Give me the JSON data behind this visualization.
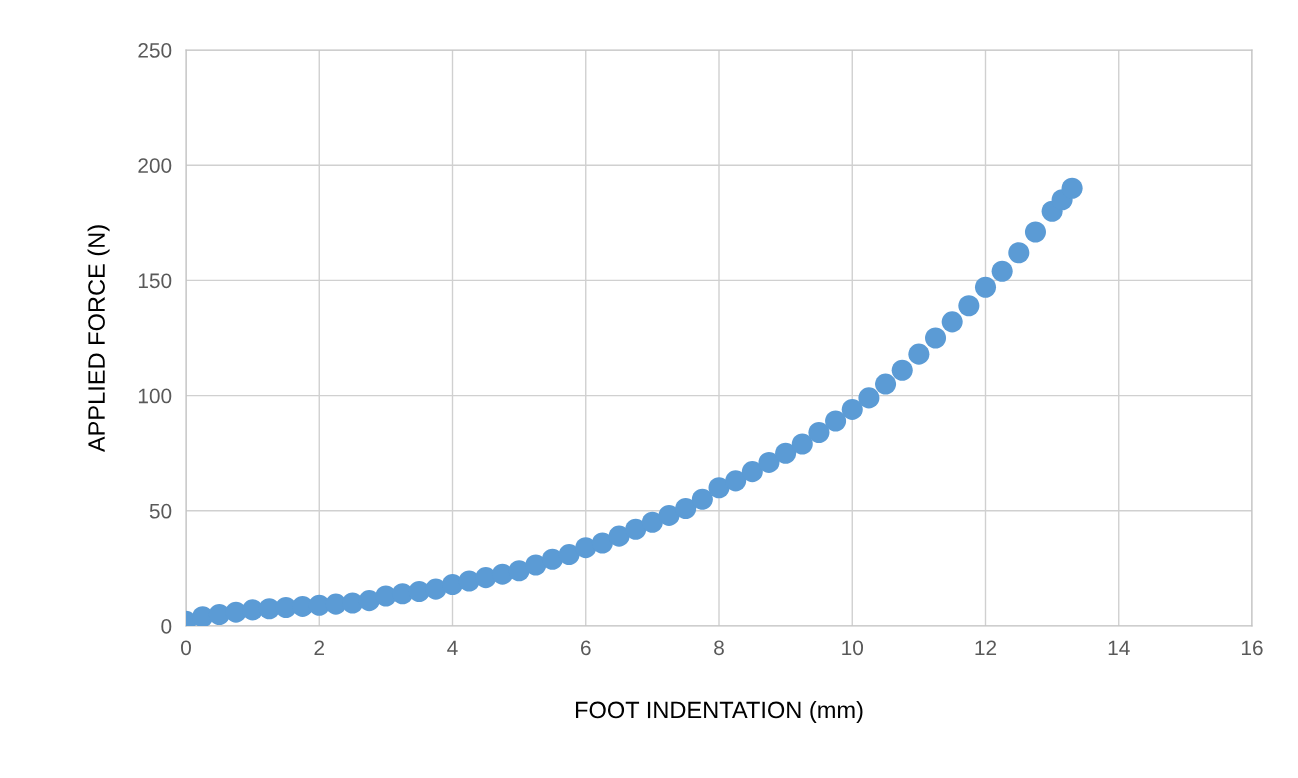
{
  "chart_data": {
    "type": "scatter",
    "xlabel": "FOOT INDENTATION (mm)",
    "ylabel": "APPLIED FORCE (N)",
    "xlim": [
      0,
      16
    ],
    "xticks": [
      0,
      2,
      4,
      6,
      8,
      10,
      12,
      14,
      16
    ],
    "ylim": [
      0,
      250
    ],
    "yticks": [
      0,
      50,
      100,
      150,
      200,
      250
    ],
    "grid": true,
    "legend": false,
    "marker": "circle",
    "series": [
      {
        "color": "#5b9bd5",
        "x": [
          0,
          0.25,
          0.5,
          0.75,
          1,
          1.25,
          1.5,
          1.75,
          2,
          2.25,
          2.5,
          2.75,
          3,
          3.25,
          3.5,
          3.75,
          4,
          4.25,
          4.5,
          4.75,
          5,
          5.25,
          5.5,
          5.75,
          6,
          6.25,
          6.5,
          6.75,
          7,
          7.25,
          7.5,
          7.75,
          8,
          8.25,
          8.5,
          8.75,
          9,
          9.25,
          9.5,
          9.75,
          10,
          10.25,
          10.5,
          10.75,
          11,
          11.25,
          11.5,
          11.75,
          12,
          12.25,
          12.5,
          12.75,
          13,
          13.15,
          13.3
        ],
        "values": [
          2,
          4,
          5,
          6,
          7,
          7.5,
          8,
          8.5,
          9,
          9.5,
          10,
          11,
          13,
          14,
          15,
          16,
          18,
          19.5,
          21,
          22.5,
          24,
          26.5,
          29,
          31,
          34,
          36,
          39,
          42,
          45,
          48,
          51,
          55,
          60,
          63,
          67,
          71,
          75,
          79,
          84,
          89,
          94,
          99,
          105,
          111,
          118,
          125,
          132,
          139,
          147,
          154,
          162,
          171,
          180,
          185,
          190
        ]
      }
    ]
  }
}
